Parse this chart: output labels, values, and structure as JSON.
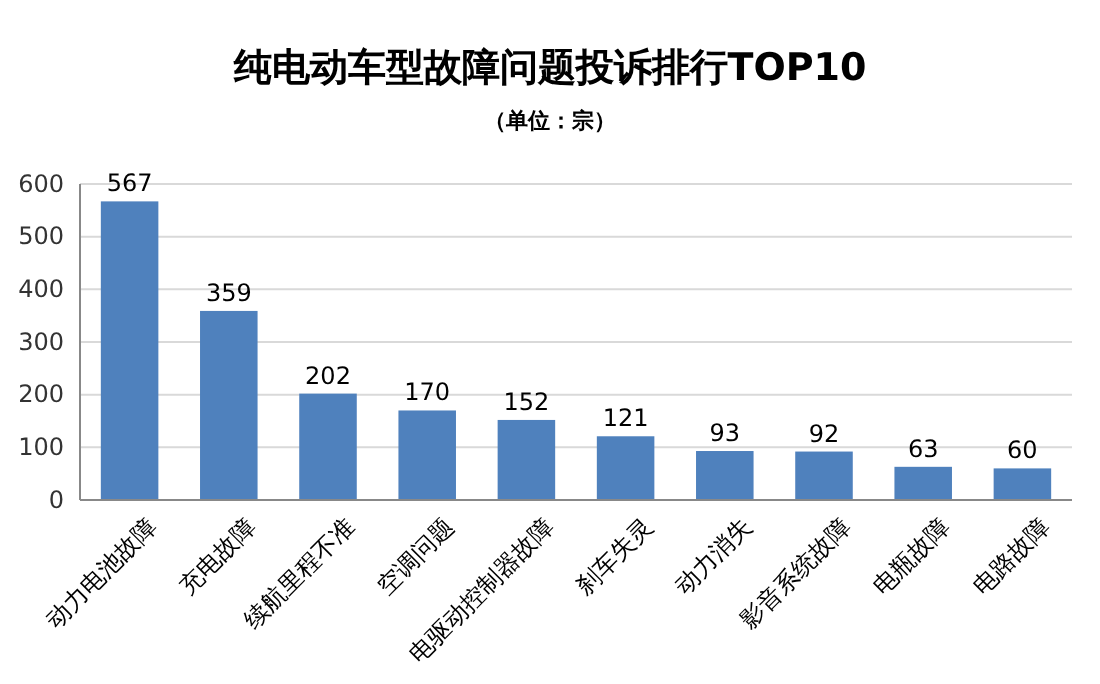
{
  "chart_data": {
    "type": "bar",
    "title": "纯电动车型故障问题投诉排行TOP10",
    "subtitle": "（单位：宗）",
    "categories": [
      "动力电池故障",
      "充电故障",
      "续航里程不准",
      "空调问题",
      "电驱动控制器故障",
      "刹车失灵",
      "动力消失",
      "影音系统故障",
      "电瓶故障",
      "电路故障"
    ],
    "values": [
      567,
      359,
      202,
      170,
      152,
      121,
      93,
      92,
      63,
      60
    ],
    "color": "#4f81bd",
    "ylim": [
      0,
      600
    ],
    "yticks": [
      0,
      100,
      200,
      300,
      400,
      500,
      600
    ],
    "grid": "y",
    "data_labels": true
  }
}
